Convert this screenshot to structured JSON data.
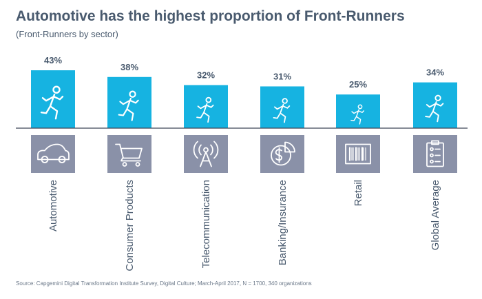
{
  "header": {
    "title": "Automotive has the highest proportion of Front-Runners",
    "subtitle": "(Front-Runners by sector)"
  },
  "footer": {
    "source": "Source: Capgemini Digital Transformation Institute Survey, Digital Culture; March-April 2017, N = 1700, 340 organizations"
  },
  "colors": {
    "bar": "#16b3e1",
    "icon_tile": "#8a91a8",
    "text": "#495a6e",
    "baseline": "#3f4658"
  },
  "icons": [
    "car-icon",
    "shopping-cart-icon",
    "antenna-icon",
    "dollar-pie-icon",
    "barcode-icon",
    "clipboard-checklist-icon"
  ],
  "chart_data": {
    "type": "bar",
    "title": "Automotive has the highest proportion of Front-Runners",
    "subtitle": "(Front-Runners by sector)",
    "categories": [
      "Automotive",
      "Consumer Products",
      "Telecommunication",
      "Banking/Insurance",
      "Retail",
      "Global Average"
    ],
    "values": [
      43,
      38,
      32,
      31,
      25,
      34
    ],
    "value_labels": [
      "43%",
      "38%",
      "32%",
      "31%",
      "25%",
      "34%"
    ],
    "unit": "%",
    "ylim": [
      0,
      43
    ],
    "grid": false,
    "legend": "none"
  }
}
